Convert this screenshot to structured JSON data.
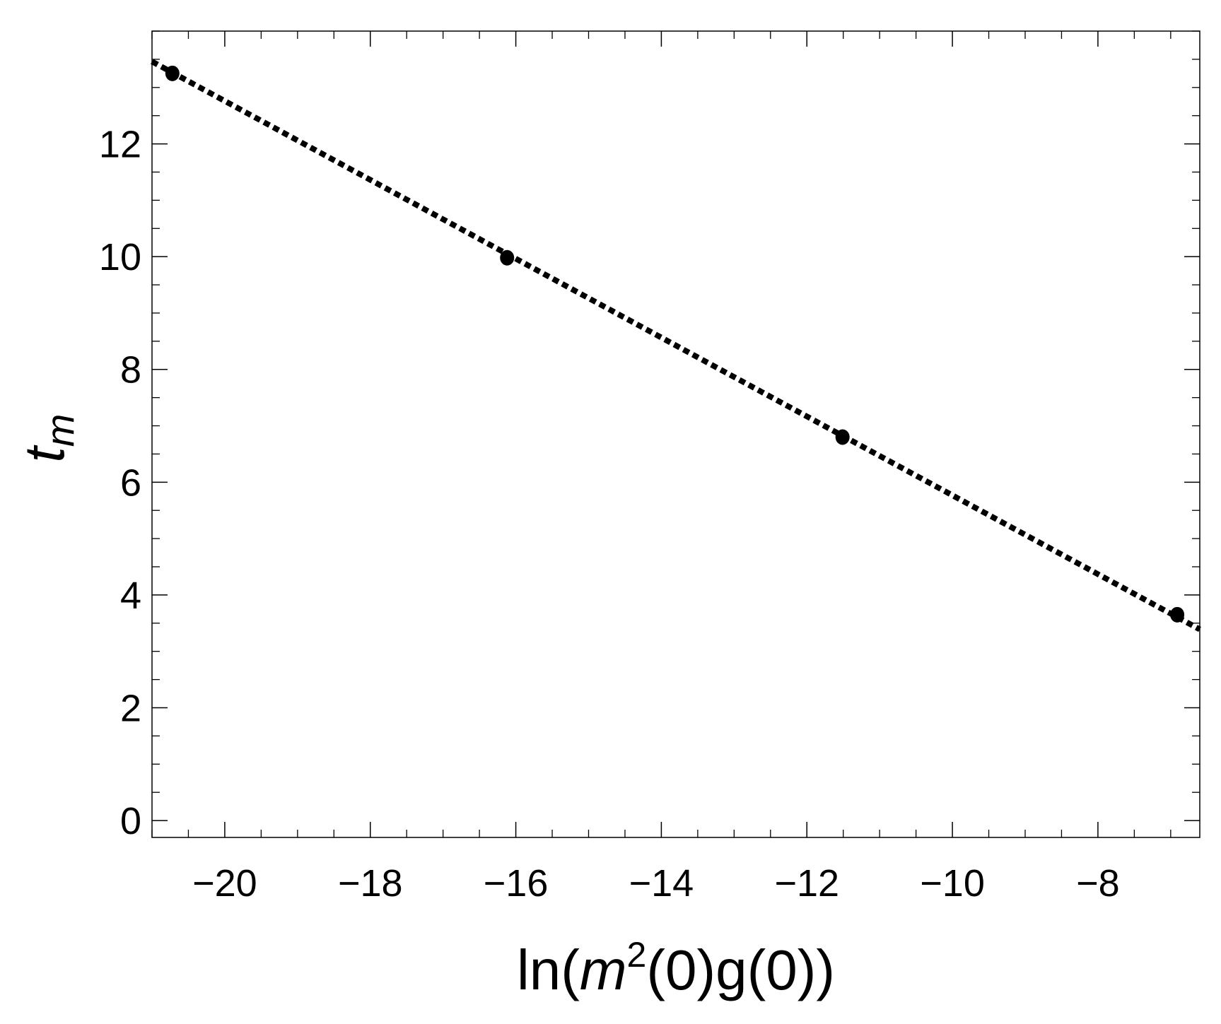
{
  "chart_data": {
    "type": "scatter",
    "xlabel": {
      "prefix": "ln(",
      "var": "m",
      "sup": "2",
      "suffix": "(0)g(0))"
    },
    "ylabel": {
      "base": "t",
      "sub": "m"
    },
    "xlim": [
      -21.0,
      -6.6
    ],
    "ylim": [
      -0.3,
      14.0
    ],
    "xticks": [
      -20,
      -18,
      -16,
      -14,
      -12,
      -10,
      -8
    ],
    "xtick_labels": [
      "−20",
      "−18",
      "−16",
      "−14",
      "−12",
      "−10",
      "−8"
    ],
    "yticks": [
      0,
      2,
      4,
      6,
      8,
      10,
      12
    ],
    "ytick_labels": [
      "0",
      "2",
      "4",
      "6",
      "8",
      "10",
      "12"
    ],
    "minor_tick_step": {
      "x": 0.5,
      "y": 0.5
    },
    "grid": false,
    "series": [
      {
        "kind": "points",
        "x": [
          -20.72,
          -16.12,
          -11.51,
          -6.91
        ],
        "y": [
          13.25,
          9.98,
          6.8,
          3.65
        ]
      },
      {
        "kind": "dotted-fit-line",
        "x": [
          -21.0,
          -6.6
        ],
        "y": [
          13.46,
          3.39
        ]
      }
    ],
    "colors": {
      "points": "#000000",
      "line": "#000000",
      "frame": "#000000"
    }
  }
}
